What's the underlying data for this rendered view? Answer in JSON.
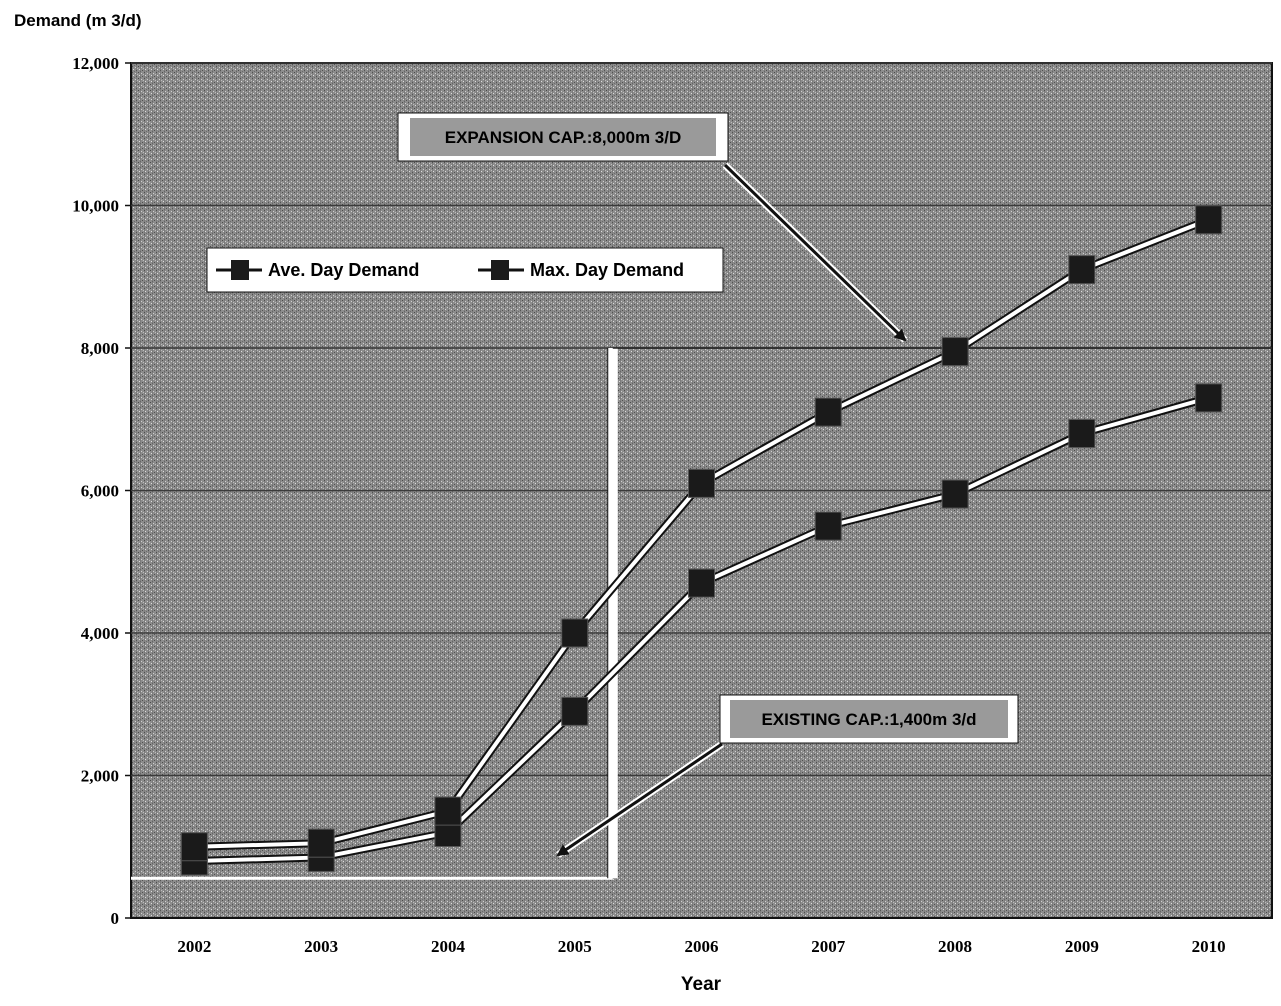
{
  "chart_data": {
    "type": "line",
    "ylabel": "Demand (m 3/d)",
    "xlabel": "Year",
    "categories": [
      "2002",
      "2003",
      "2004",
      "2005",
      "2006",
      "2007",
      "2008",
      "2009",
      "2010"
    ],
    "ylim": [
      0,
      12000
    ],
    "yticks": [
      0,
      2000,
      4000,
      6000,
      8000,
      10000,
      12000
    ],
    "ytick_labels": [
      "0",
      "2,000",
      "4,000",
      "6,000",
      "8,000",
      "10,000",
      "12,000"
    ],
    "grid": true,
    "legend_position": "upper-left",
    "series": [
      {
        "name": "Ave. Day Demand",
        "values": [
          800,
          850,
          1200,
          2900,
          4700,
          5500,
          5950,
          6800,
          7300
        ]
      },
      {
        "name": "Max. Day Demand",
        "values": [
          1000,
          1050,
          1500,
          4000,
          6100,
          7100,
          7950,
          9100,
          9800
        ]
      }
    ],
    "reference_lines": [
      {
        "label": "EXISTING CAP.:1,400m 3/d",
        "value": 1400
      },
      {
        "label": "EXPANSION CAP.:8,000m 3/D",
        "value": 8000
      }
    ],
    "annotations": [
      {
        "text": "EXPANSION CAP.:8,000m 3/D"
      },
      {
        "text": "EXISTING CAP.:1,400m 3/d"
      }
    ],
    "colors": {
      "plot_background": "#8a8a8a",
      "grid": "#3a3a3a",
      "line": "#ffffff",
      "marker": "#1a1a1a",
      "label_box": "#ffffff"
    }
  }
}
